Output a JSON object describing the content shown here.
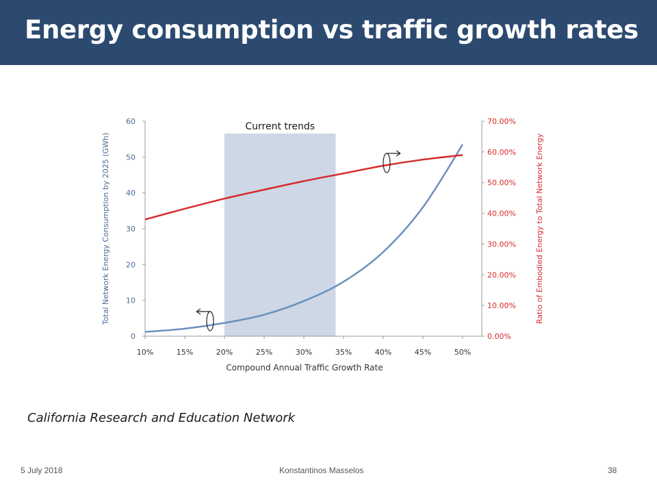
{
  "slide": {
    "title": "Energy consumption vs traffic growth rates",
    "source": "California Research and Education Network",
    "footer": {
      "date": "5 July 2018",
      "author": "Konstantinos Masselos",
      "page": "38"
    }
  },
  "colors": {
    "title_bg": "#2c4a70",
    "energy_line": "#6a8fbf",
    "ratio_line": "#d52b2b",
    "trend_band": "#cdd7e6"
  },
  "chart_data": {
    "type": "line",
    "x": [
      "10%",
      "15%",
      "20%",
      "25%",
      "30%",
      "35%",
      "40%",
      "45%",
      "50%"
    ],
    "xlabel": "Compound Annual Traffic Growth Rate",
    "ylabel_left": "Total Network Energy Consumption by 2025 (GWh)",
    "ylabel_right": "Ratio of Embodied Energy to Total Network Energy",
    "yticks_left": [
      "0",
      "10",
      "20",
      "30",
      "40",
      "50",
      "60"
    ],
    "yticks_right": [
      "0.00%",
      "10.00%",
      "20.00%",
      "30.00%",
      "40.00%",
      "50.00%",
      "60.00%",
      "70.00%"
    ],
    "ylim_left": [
      0,
      60
    ],
    "ylim_right": [
      0,
      70
    ],
    "annotation": {
      "label": "Current trends",
      "x_range": [
        20,
        34
      ]
    },
    "series": [
      {
        "key": "energy",
        "axis": "left",
        "x": [
          10,
          15,
          20,
          25,
          30,
          35,
          40,
          45,
          50
        ],
        "values": [
          1.2,
          2.1,
          3.7,
          6.0,
          9.8,
          15.2,
          23.5,
          36.0,
          53.5
        ]
      },
      {
        "key": "ratio",
        "axis": "right",
        "x": [
          10,
          15,
          20,
          25,
          30,
          35,
          40,
          45,
          50
        ],
        "values": [
          38.0,
          41.5,
          44.8,
          47.7,
          50.5,
          53.0,
          55.5,
          57.5,
          59.0
        ]
      }
    ],
    "grid": false
  }
}
